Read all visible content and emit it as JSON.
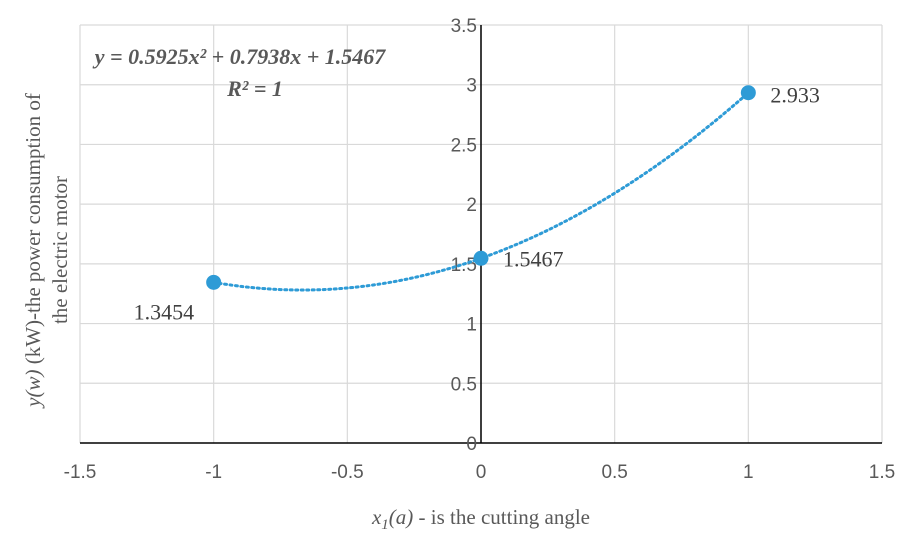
{
  "chart_data": {
    "type": "scatter",
    "title": "",
    "xlabel": {
      "var": "x",
      "sub": "1",
      "arg": "(a)",
      "rest": " - is the cutting angle"
    },
    "ylabel": {
      "line1_var": "y(w)",
      "line1_rest": " (kW)-the power consumption of",
      "line2": "the electric motor"
    },
    "xlim": [
      -1.5,
      1.5
    ],
    "ylim": [
      0,
      3.5
    ],
    "xticks": [
      -1.5,
      -1,
      -0.5,
      0,
      0.5,
      1,
      1.5
    ],
    "yticks": [
      0,
      0.5,
      1,
      1.5,
      2,
      2.5,
      3,
      3.5
    ],
    "grid": true,
    "series": [
      {
        "points": [
          {
            "x": -1,
            "y": 1.3454,
            "label": "1.3454"
          },
          {
            "x": 0,
            "y": 1.5467,
            "label": "1.5467"
          },
          {
            "x": 1,
            "y": 2.933,
            "label": "2.933"
          }
        ],
        "color": "#2e9bd6"
      }
    ],
    "trendline": {
      "type": "polynomial",
      "coefficients": {
        "a": 0.5925,
        "b": 0.7938,
        "c": 1.5467
      },
      "x_range": [
        -1,
        1
      ],
      "color": "#2e9bd6",
      "style": "dotted",
      "equation": "y = 0.5925x² + 0.7938x + 1.5467",
      "r_squared": "R² = 1"
    }
  }
}
